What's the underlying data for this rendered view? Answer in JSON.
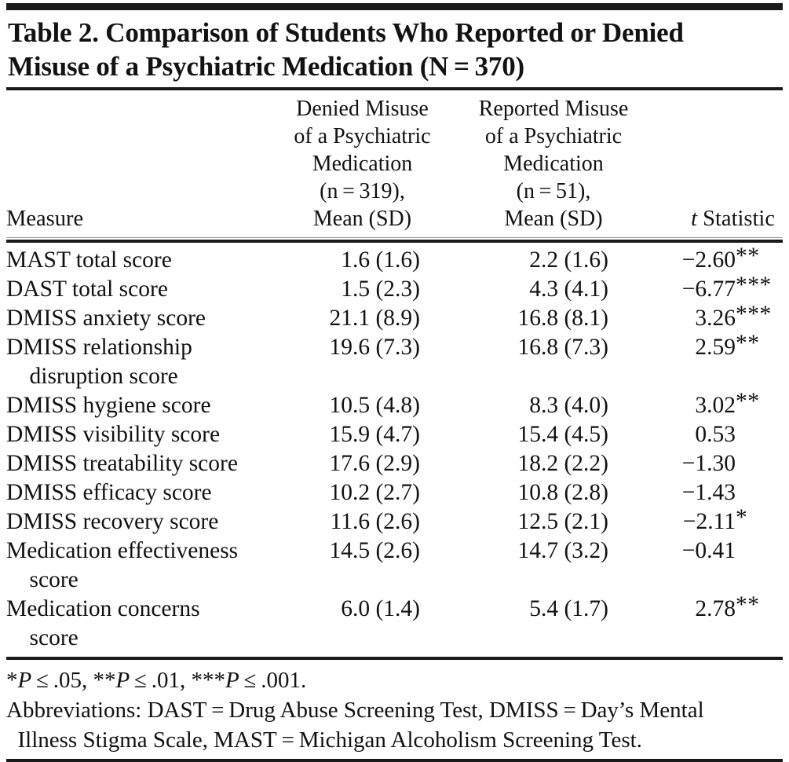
{
  "title": {
    "lines": [
      "Table 2. Comparison of Students Who Reported or Denied",
      "Misuse of a Psychiatric Medication (N = 370)"
    ]
  },
  "header": {
    "measure": "Measure",
    "denied_lines": [
      "Denied Misuse",
      "of a Psychiatric",
      "Medication",
      "(n = 319),",
      "Mean (SD)"
    ],
    "reported_lines": [
      "Reported Misuse",
      "of a Psychiatric",
      "Medication",
      "(n = 51),",
      "Mean (SD)"
    ],
    "t_italic": "t",
    "t_rest": " Statistic"
  },
  "rows": [
    {
      "measure": [
        "MAST total score"
      ],
      "denied": "1.6 (1.6)",
      "reported": "2.2 (1.6)",
      "t": "−2.60",
      "stars": "**"
    },
    {
      "measure": [
        "DAST total score"
      ],
      "denied": "1.5 (2.3)",
      "reported": "4.3 (4.1)",
      "t": "−6.77",
      "stars": "***"
    },
    {
      "measure": [
        "DMISS anxiety score"
      ],
      "denied": "21.1 (8.9)",
      "reported": "16.8 (8.1)",
      "t": "3.26",
      "stars": "***"
    },
    {
      "measure": [
        "DMISS relationship",
        " disruption score"
      ],
      "denied": "19.6 (7.3)",
      "reported": "16.8 (7.3)",
      "t": "2.59",
      "stars": "**"
    },
    {
      "measure": [
        "DMISS hygiene score"
      ],
      "denied": "10.5 (4.8)",
      "reported": "8.3 (4.0)",
      "t": "3.02",
      "stars": "**"
    },
    {
      "measure": [
        "DMISS visibility score"
      ],
      "denied": "15.9 (4.7)",
      "reported": "15.4 (4.5)",
      "t": "0.53",
      "stars": ""
    },
    {
      "measure": [
        "DMISS treatability score"
      ],
      "denied": "17.6 (2.9)",
      "reported": "18.2 (2.2)",
      "t": "−1.30",
      "stars": ""
    },
    {
      "measure": [
        "DMISS efficacy score"
      ],
      "denied": "10.2 (2.7)",
      "reported": "10.8 (2.8)",
      "t": "−1.43",
      "stars": ""
    },
    {
      "measure": [
        "DMISS recovery score"
      ],
      "denied": "11.6 (2.6)",
      "reported": "12.5 (2.1)",
      "t": "−2.11",
      "stars": "*"
    },
    {
      "measure": [
        "Medication effectiveness",
        " score"
      ],
      "denied": "14.5 (2.6)",
      "reported": "14.7 (3.2)",
      "t": "−0.41",
      "stars": ""
    },
    {
      "measure": [
        "Medication concerns",
        " score"
      ],
      "denied": "6.0 (1.4)",
      "reported": "5.4 (1.7)",
      "t": "2.78",
      "stars": "**"
    }
  ],
  "footnotes": {
    "sig": {
      "star1": "*",
      "p1": "P",
      "t1": " ≤ .05, ",
      "star2": "**",
      "p2": "P",
      "t2": " ≤ .01, ",
      "star3": "***",
      "p3": "P",
      "t3": " ≤ .001."
    },
    "abbr_lines": [
      "Abbreviations: DAST = Drug Abuse Screening Test, DMISS = Day’s Mental",
      " Illness Stigma Scale, MAST = Michigan Alcoholism Screening Test."
    ]
  }
}
